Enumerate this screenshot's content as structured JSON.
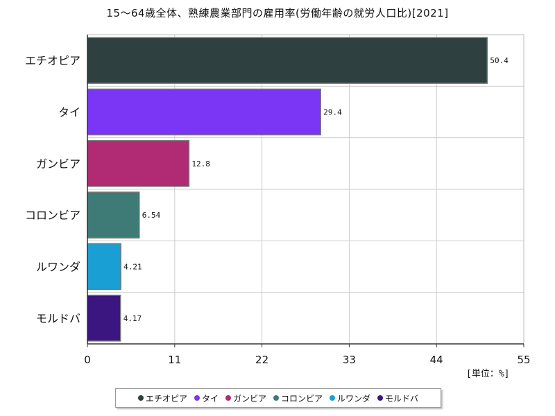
{
  "chart_data": {
    "type": "bar",
    "orientation": "horizontal",
    "title": "15〜64歳全体、熟練農業部門の雇用率(労働年齢の就労人口比)[2021]",
    "unit_label": "[単位：%]",
    "categories": [
      "エチオピア",
      "タイ",
      "ガンビア",
      "コロンビア",
      "ルワンダ",
      "モルドバ"
    ],
    "values": [
      50.4,
      29.4,
      12.8,
      6.54,
      4.21,
      4.17
    ],
    "value_labels": [
      "50.4",
      "29.4",
      "12.8",
      "6.54",
      "4.21",
      "4.17"
    ],
    "colors": [
      "#2f4040",
      "#7b35f5",
      "#b02a74",
      "#3e7b77",
      "#1a9fd4",
      "#3b1580"
    ],
    "xlim": [
      0,
      55
    ],
    "xticks": [
      0,
      11,
      22,
      33,
      44,
      55
    ],
    "grid": true,
    "legend_position": "bottom"
  }
}
